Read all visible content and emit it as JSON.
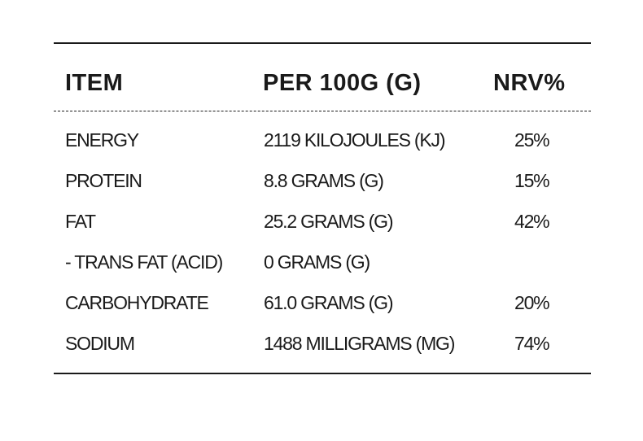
{
  "table": {
    "headers": {
      "item": "ITEM",
      "per": "PER 100G (G)",
      "nrv": "NRV%"
    },
    "rows": [
      {
        "item": "ENERGY",
        "amount": "2119 KILOJOULES (KJ)",
        "nrv": "25%"
      },
      {
        "item": "PROTEIN",
        "amount": "8.8 GRAMS (G)",
        "nrv": "15%"
      },
      {
        "item": "FAT",
        "amount": "25.2 GRAMS (G)",
        "nrv": "42%"
      },
      {
        "item": "- TRANS FAT (ACID)",
        "amount": "0 GRAMS (G)",
        "nrv": ""
      },
      {
        "item": "CARBOHYDRATE",
        "amount": "61.0 GRAMS (G)",
        "nrv": "20%"
      },
      {
        "item": "SODIUM",
        "amount": "1488 MILLIGRAMS (MG)",
        "nrv": "74%"
      }
    ]
  }
}
